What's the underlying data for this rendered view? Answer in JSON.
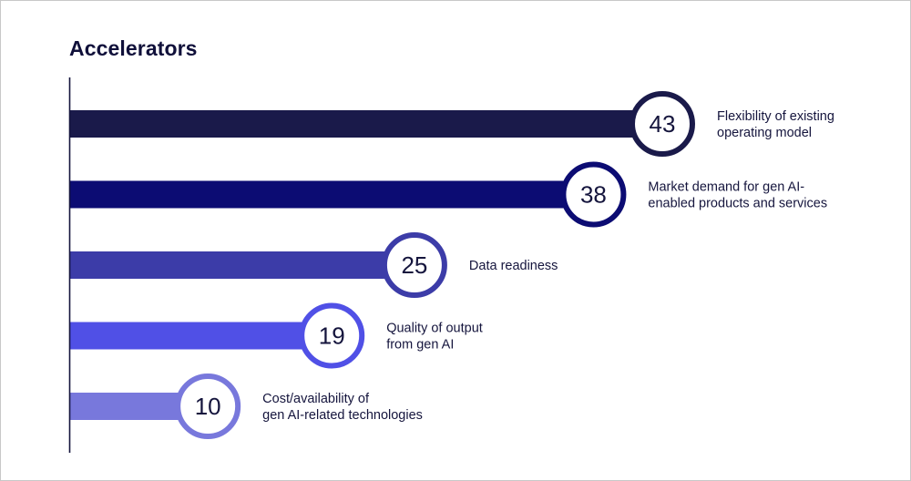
{
  "chart_data": {
    "type": "bar",
    "orientation": "horizontal",
    "title": "Accelerators",
    "xlabel": "",
    "ylabel": "",
    "xlim": [
      0,
      50
    ],
    "grid": false,
    "legend": "none",
    "categories": [
      "Flexibility of existing operating model",
      "Market demand for gen AI-enabled products and services",
      "Data readiness",
      "Quality of output from gen AI",
      "Cost/availability of gen AI-related technologies"
    ],
    "label_lines": [
      [
        "Flexibility of existing",
        "operating model"
      ],
      [
        "Market demand for gen AI-",
        "enabled products and services"
      ],
      [
        "Data readiness"
      ],
      [
        "Quality of output",
        "from gen AI"
      ],
      [
        "Cost/availability of",
        "gen AI-related technologies"
      ]
    ],
    "values": [
      43,
      38,
      25,
      19,
      10
    ],
    "colors": [
      "#1a1a4a",
      "#0c0c73",
      "#3c3ca8",
      "#5050e6",
      "#7878dc"
    ]
  }
}
